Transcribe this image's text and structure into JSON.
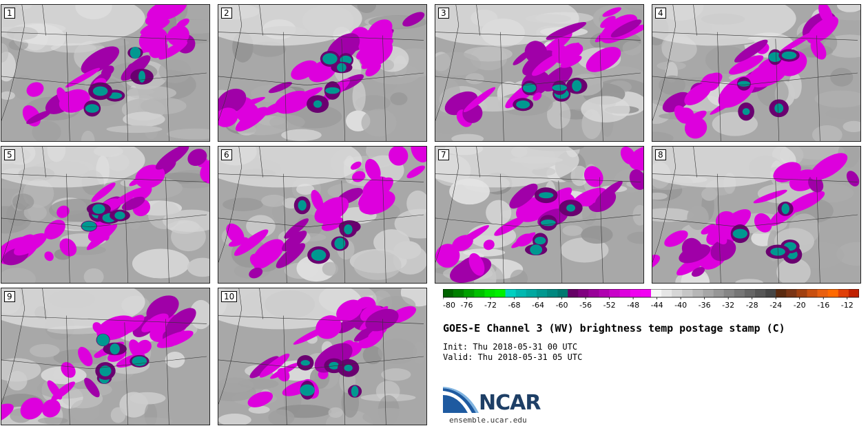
{
  "panels": [
    {
      "label": "1"
    },
    {
      "label": "2"
    },
    {
      "label": "3"
    },
    {
      "label": "4"
    },
    {
      "label": "5"
    },
    {
      "label": "6"
    },
    {
      "label": "7"
    },
    {
      "label": "8"
    },
    {
      "label": "9"
    },
    {
      "label": "10"
    }
  ],
  "colorbar": {
    "tick_labels": [
      "-80",
      "-76",
      "-72",
      "-68",
      "-64",
      "-60",
      "-56",
      "-52",
      "-48",
      "-44",
      "-40",
      "-36",
      "-32",
      "-28",
      "-24",
      "-20",
      "-16",
      "-12"
    ],
    "colors": [
      "#006400",
      "#007f00",
      "#00a000",
      "#00c000",
      "#00e000",
      "#00f000",
      "#00d0c0",
      "#00b8b0",
      "#00a8a0",
      "#009890",
      "#008880",
      "#007870",
      "#660066",
      "#800080",
      "#990099",
      "#b000b0",
      "#c800c8",
      "#dd00dd",
      "#ee00ee",
      "#f200f2",
      "#f6f6f6",
      "#e6e6e6",
      "#d6d6d6",
      "#c6c6c6",
      "#b6b6b6",
      "#a6a6a6",
      "#969696",
      "#868686",
      "#767676",
      "#666666",
      "#565656",
      "#464646",
      "#5a2a10",
      "#7a3515",
      "#a04010",
      "#c85010",
      "#e86010",
      "#ff6a00",
      "#e04008",
      "#c02000"
    ]
  },
  "title": "GOES-E Channel 3 (WV) brightness temp postage stamp (C)",
  "init": "Init: Thu 2018-05-31 00 UTC",
  "valid": "Valid: Thu 2018-05-31 05 UTC",
  "logo": {
    "text": "NCAR",
    "url": "ensemble.ucar.edu",
    "color": "#1e5aa0"
  }
}
